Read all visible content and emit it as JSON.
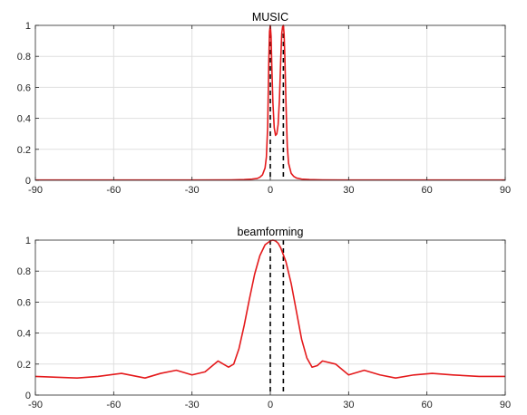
{
  "chart_data": [
    {
      "type": "line",
      "title": "MUSIC",
      "xlabel": "",
      "ylabel": "",
      "xlim": [
        -90,
        90
      ],
      "ylim": [
        0,
        1
      ],
      "xticks": [
        "-90",
        "-60",
        "-30",
        "0",
        "30",
        "60",
        "90"
      ],
      "yticks": [
        "0",
        "0.2",
        "0.4",
        "0.6",
        "0.8",
        "1"
      ],
      "grid": true,
      "series": [
        {
          "color": "#e41a1c",
          "x": [
            -90,
            -60,
            -30,
            -15,
            -10,
            -7,
            -5,
            -4,
            -3,
            -2,
            -1.5,
            -1,
            -0.6,
            -0.3,
            0,
            0.3,
            0.6,
            1,
            1.5,
            2,
            2.5,
            3,
            3.5,
            4,
            4.4,
            4.7,
            5,
            5.3,
            5.6,
            6,
            6.5,
            7,
            8,
            9,
            10,
            12,
            15,
            20,
            30,
            60,
            90
          ],
          "y": [
            0.002,
            0.002,
            0.002,
            0.003,
            0.005,
            0.008,
            0.012,
            0.02,
            0.035,
            0.08,
            0.15,
            0.35,
            0.75,
            0.96,
            1.0,
            0.93,
            0.72,
            0.5,
            0.34,
            0.29,
            0.3,
            0.36,
            0.52,
            0.78,
            0.95,
            0.99,
            1.0,
            0.94,
            0.78,
            0.5,
            0.22,
            0.11,
            0.045,
            0.025,
            0.015,
            0.008,
            0.005,
            0.003,
            0.002,
            0.002,
            0.002
          ]
        }
      ],
      "vlines": [
        0,
        5
      ]
    },
    {
      "type": "line",
      "title": "beamforming",
      "xlabel": "",
      "ylabel": "",
      "xlim": [
        -90,
        90
      ],
      "ylim": [
        0,
        1
      ],
      "xticks": [
        "-90",
        "-60",
        "-30",
        "0",
        "30",
        "60",
        "90"
      ],
      "yticks": [
        "0",
        "0.2",
        "0.4",
        "0.6",
        "0.8",
        "1"
      ],
      "grid": true,
      "series": [
        {
          "color": "#e41a1c",
          "x": [
            -90,
            -82,
            -74,
            -66,
            -57,
            -48,
            -42,
            -36,
            -30,
            -25,
            -20,
            -16,
            -14,
            -12,
            -10,
            -8,
            -6,
            -4,
            -2,
            0,
            1,
            2,
            3,
            4,
            6,
            8,
            10,
            12,
            14,
            16,
            18,
            20,
            25,
            30,
            36,
            42,
            48,
            55,
            62,
            70,
            80,
            90
          ],
          "y": [
            0.12,
            0.115,
            0.11,
            0.12,
            0.14,
            0.11,
            0.14,
            0.16,
            0.13,
            0.15,
            0.22,
            0.18,
            0.2,
            0.3,
            0.45,
            0.62,
            0.78,
            0.9,
            0.97,
            0.995,
            1.0,
            0.995,
            0.98,
            0.95,
            0.86,
            0.72,
            0.54,
            0.36,
            0.24,
            0.18,
            0.19,
            0.22,
            0.2,
            0.13,
            0.16,
            0.13,
            0.11,
            0.13,
            0.14,
            0.13,
            0.12,
            0.12
          ]
        }
      ],
      "vlines": [
        0,
        5
      ]
    }
  ]
}
